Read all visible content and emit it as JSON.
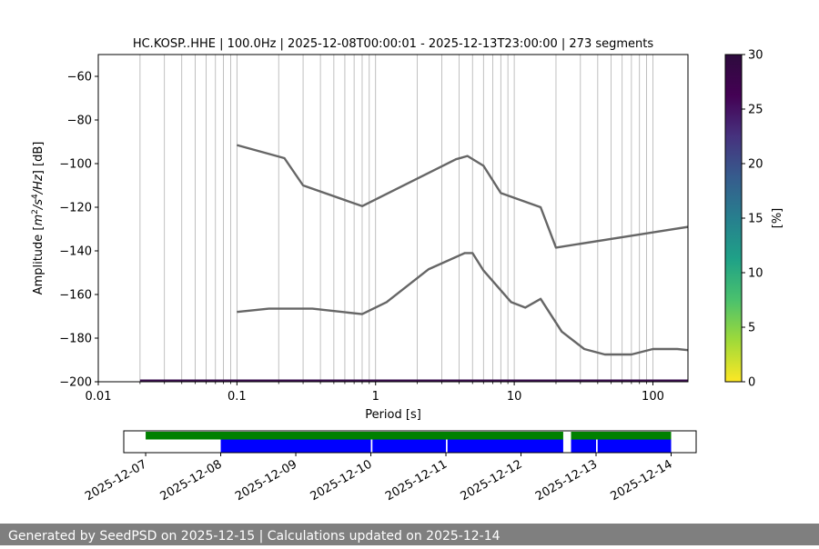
{
  "chart_data": [
    {
      "type": "line",
      "title": "HC.KOSP..HHE | 100.0Hz | 2025-12-08T00:00:01 - 2025-12-13T23:00:00 | 273 segments",
      "xlabel": "Period [s]",
      "ylabel_parts": [
        "Amplitude [",
        "m",
        "2",
        "/",
        "s",
        "4",
        "/",
        "Hz",
        "] [dB]"
      ],
      "x_scale": "log",
      "xlim": [
        0.01,
        179
      ],
      "ylim": [
        -200,
        -50
      ],
      "x_ticks": [
        {
          "value": 0.01,
          "label": "0.01"
        },
        {
          "value": 0.1,
          "label": "0.1"
        },
        {
          "value": 1,
          "label": "1"
        },
        {
          "value": 10,
          "label": "10"
        },
        {
          "value": 100,
          "label": "100"
        }
      ],
      "y_ticks": [
        {
          "value": -60,
          "label": "−60"
        },
        {
          "value": -80,
          "label": "−80"
        },
        {
          "value": -100,
          "label": "−100"
        },
        {
          "value": -120,
          "label": "−120"
        },
        {
          "value": -140,
          "label": "−140"
        },
        {
          "value": -160,
          "label": "−160"
        },
        {
          "value": -180,
          "label": "−180"
        },
        {
          "value": -200,
          "label": "−200"
        }
      ],
      "grid": "vertical-minor",
      "series": [
        {
          "line_color": "#666666",
          "points": [
            [
              0.1,
              -91.5
            ],
            [
              0.22,
              -97.5
            ],
            [
              0.3,
              -110
            ],
            [
              0.8,
              -119.5
            ],
            [
              3.8,
              -98
            ],
            [
              4.6,
              -96.5
            ],
            [
              6,
              -101
            ],
            [
              8,
              -113.5
            ],
            [
              15.5,
              -120
            ],
            [
              20,
              -138.5
            ],
            [
              179,
              -129
            ]
          ]
        },
        {
          "line_color": "#666666",
          "points": [
            [
              0.1,
              -168
            ],
            [
              0.17,
              -166.5
            ],
            [
              0.35,
              -166.5
            ],
            [
              0.8,
              -169
            ],
            [
              1.2,
              -163.5
            ],
            [
              2.4,
              -148.5
            ],
            [
              4.4,
              -141
            ],
            [
              5,
              -141
            ],
            [
              6,
              -149
            ],
            [
              9.5,
              -163.5
            ],
            [
              12,
              -166
            ],
            [
              15.5,
              -162
            ],
            [
              22,
              -177
            ],
            [
              32,
              -185
            ],
            [
              45,
              -187.5
            ],
            [
              70,
              -187.5
            ],
            [
              100,
              -185
            ],
            [
              150,
              -185
            ],
            [
              179,
              -185.5
            ]
          ]
        }
      ],
      "baseline": {
        "x_from": 0.02,
        "x_to": 179,
        "y": -200,
        "color": "#3b0f4f"
      }
    },
    {
      "type": "colorbar",
      "label": "[%]",
      "colormap": "viridis_r",
      "range": [
        0,
        30
      ],
      "ticks": [
        {
          "value": 0,
          "label": "0"
        },
        {
          "value": 5,
          "label": "5"
        },
        {
          "value": 10,
          "label": "10"
        },
        {
          "value": 15,
          "label": "15"
        },
        {
          "value": 20,
          "label": "20"
        },
        {
          "value": 25,
          "label": "25"
        },
        {
          "value": 30,
          "label": "30"
        }
      ]
    },
    {
      "type": "timeline",
      "x_range": [
        "2025-12-06T17:00",
        "2025-12-14T08:00"
      ],
      "date_ticks": [
        "2025-12-07",
        "2025-12-08",
        "2025-12-09",
        "2025-12-10",
        "2025-12-11",
        "2025-12-12",
        "2025-12-13",
        "2025-12-14"
      ],
      "rows": [
        {
          "name": "",
          "color": "#008000",
          "lane": "top",
          "segments": [
            [
              "2025-12-07T00:00",
              "2025-12-12T13:30"
            ],
            [
              "2025-12-12T16:00",
              "2025-12-14T00:00"
            ]
          ]
        },
        {
          "name": "",
          "color": "#0000ff",
          "lane": "bottom",
          "segments": [
            [
              "2025-12-08T00:00",
              "2025-12-10T00:00"
            ],
            [
              "2025-12-10T00:30",
              "2025-12-11T00:00"
            ],
            [
              "2025-12-11T00:30",
              "2025-12-12T13:30"
            ],
            [
              "2025-12-12T16:00",
              "2025-12-13T00:00"
            ],
            [
              "2025-12-13T00:30",
              "2025-12-14T00:00"
            ]
          ]
        }
      ]
    }
  ],
  "footer": {
    "text": "Generated by SeedPSD on 2025-12-15 | Calculations updated on 2025-12-14"
  }
}
